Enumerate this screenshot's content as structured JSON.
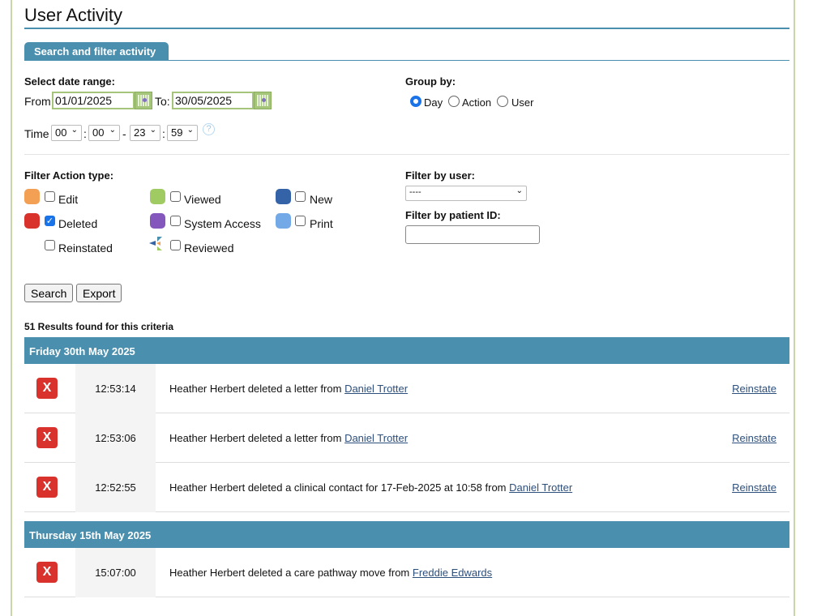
{
  "page": {
    "title": "User Activity",
    "tab": "Search and filter activity"
  },
  "form": {
    "date_range_label": "Select date range:",
    "from_label": "From",
    "from_value": "01/01/2025",
    "to_label": "To:",
    "to_value": "30/05/2025",
    "time_label": "Time",
    "time": [
      "00",
      "00",
      "23",
      "59"
    ],
    "group_by_label": "Group by:",
    "group_by_options": [
      "Day",
      "Action",
      "User"
    ],
    "group_by_selected": "Day",
    "action_type_label": "Filter Action type:",
    "action_types": [
      {
        "label": "Edit",
        "color": "#f3a055",
        "checked": false
      },
      {
        "label": "Viewed",
        "color": "#9fcb62",
        "checked": false
      },
      {
        "label": "New",
        "color": "#3563a8",
        "checked": false
      },
      {
        "label": "Deleted",
        "color": "#d9322c",
        "checked": true
      },
      {
        "label": "System Access",
        "color": "#8457bd",
        "checked": false
      },
      {
        "label": "Print",
        "color": "#73a9e6",
        "checked": false
      },
      {
        "label": "Reinstated",
        "color": "",
        "checked": false
      },
      {
        "label": "Reviewed",
        "color": "",
        "checked": false
      }
    ],
    "filter_user_label": "Filter by user:",
    "filter_user_value": "----",
    "filter_patient_label": "Filter by patient ID:",
    "filter_patient_value": "",
    "search_label": "Search",
    "export_label": "Export"
  },
  "results": {
    "count_text": "51 Results found for this criteria",
    "reinstate_label": "Reinstate",
    "groups": [
      {
        "day": "Friday 30th May 2025",
        "rows": [
          {
            "time": "12:53:14",
            "text": "Heather Herbert deleted a letter from ",
            "patient": "Daniel Trotter"
          },
          {
            "time": "12:53:06",
            "text": "Heather Herbert deleted a letter from ",
            "patient": "Daniel Trotter"
          },
          {
            "time": "12:52:55",
            "text": "Heather Herbert deleted a clinical contact for 17-Feb-2025 at 10:58 from ",
            "patient": "Daniel Trotter"
          }
        ]
      },
      {
        "day": "Thursday 15th May 2025",
        "rows": [
          {
            "time": "15:07:00",
            "text": "Heather Herbert deleted a care pathway move from ",
            "patient": "Freddie Edwards"
          }
        ]
      }
    ]
  }
}
